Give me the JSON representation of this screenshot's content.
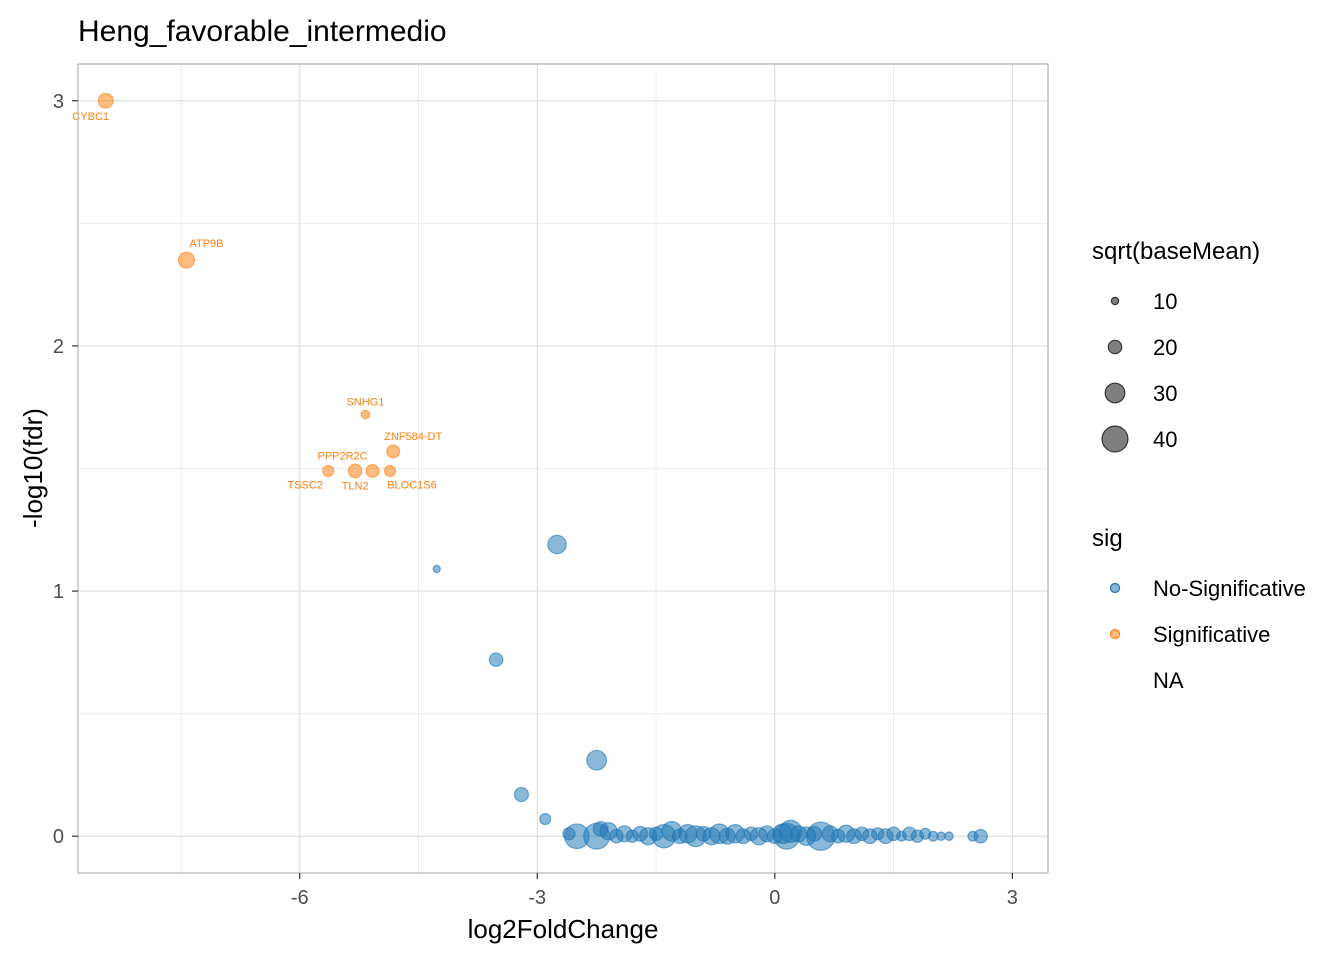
{
  "chart_data": {
    "type": "scatter",
    "title": "Heng_favorable_intermedio",
    "xlabel": "log2FoldChange",
    "ylabel": "-log10(fdr)",
    "xlim": [
      -8.8,
      3.45
    ],
    "ylim": [
      -0.15,
      3.15
    ],
    "x_ticks": [
      -6,
      -3,
      0,
      3
    ],
    "y_ticks": [
      0,
      1,
      2,
      3
    ],
    "x_tick_labels": [
      "-6",
      "-3",
      "0",
      "3"
    ],
    "y_tick_labels": [
      "0",
      "1",
      "2",
      "3"
    ],
    "grid": true,
    "colors": {
      "No-Significative": "#1f77b4",
      "Significative": "#ff7f0e"
    },
    "legend": {
      "placement": "right",
      "size_title": "sqrt(baseMean)",
      "size_entries": [
        {
          "label": "10",
          "value": 10
        },
        {
          "label": "20",
          "value": 20
        },
        {
          "label": "30",
          "value": 30
        },
        {
          "label": "40",
          "value": 40
        }
      ],
      "color_title": "sig",
      "color_entries": [
        "No-Significative",
        "Significative",
        "NA"
      ]
    },
    "series": [
      {
        "name": "Significative",
        "points": [
          {
            "x": -8.45,
            "y": 3.0,
            "size": 22,
            "label": "CYBC1",
            "label_pos": "below"
          },
          {
            "x": -7.43,
            "y": 2.35,
            "size": 24,
            "label": "ATP9B",
            "label_pos": "above"
          },
          {
            "x": -5.17,
            "y": 1.72,
            "size": 12,
            "label": "SNHG1",
            "label_pos": "above"
          },
          {
            "x": -4.82,
            "y": 1.57,
            "size": 19,
            "label": "ZNF584-DT",
            "label_pos": "above"
          },
          {
            "x": -5.64,
            "y": 1.49,
            "size": 16,
            "label": "TSSC2",
            "label_pos": "below"
          },
          {
            "x": -5.3,
            "y": 1.49,
            "size": 20,
            "label": "TLN2",
            "label_pos": "below"
          },
          {
            "x": -5.08,
            "y": 1.49,
            "size": 19,
            "label": "PPP2R2C",
            "label_pos": "above"
          },
          {
            "x": -4.86,
            "y": 1.49,
            "size": 16,
            "label": "BLOC1S6",
            "label_pos": "below"
          }
        ]
      },
      {
        "name": "No-Significative",
        "points": [
          {
            "x": -2.75,
            "y": 1.19,
            "size": 28
          },
          {
            "x": -4.27,
            "y": 1.09,
            "size": 10
          },
          {
            "x": -3.52,
            "y": 0.72,
            "size": 20
          },
          {
            "x": -2.25,
            "y": 0.31,
            "size": 30
          },
          {
            "x": -3.2,
            "y": 0.17,
            "size": 21
          },
          {
            "x": -2.9,
            "y": 0.07,
            "size": 16
          },
          {
            "x": -2.5,
            "y": 0.0,
            "size": 38
          },
          {
            "x": -2.6,
            "y": 0.01,
            "size": 18
          },
          {
            "x": -2.25,
            "y": 0.0,
            "size": 40
          },
          {
            "x": -2.2,
            "y": 0.03,
            "size": 22
          },
          {
            "x": -2.1,
            "y": 0.02,
            "size": 26
          },
          {
            "x": -2.0,
            "y": 0.0,
            "size": 20
          },
          {
            "x": -1.9,
            "y": 0.01,
            "size": 24
          },
          {
            "x": -1.8,
            "y": 0.0,
            "size": 18
          },
          {
            "x": -1.7,
            "y": 0.01,
            "size": 22
          },
          {
            "x": -1.6,
            "y": 0.0,
            "size": 26
          },
          {
            "x": -1.5,
            "y": 0.01,
            "size": 20
          },
          {
            "x": -1.4,
            "y": 0.0,
            "size": 36
          },
          {
            "x": -1.3,
            "y": 0.02,
            "size": 30
          },
          {
            "x": -1.2,
            "y": 0.0,
            "size": 22
          },
          {
            "x": -1.1,
            "y": 0.01,
            "size": 28
          },
          {
            "x": -1.0,
            "y": 0.0,
            "size": 32
          },
          {
            "x": -0.9,
            "y": 0.01,
            "size": 22
          },
          {
            "x": -0.8,
            "y": 0.0,
            "size": 26
          },
          {
            "x": -0.7,
            "y": 0.01,
            "size": 30
          },
          {
            "x": -0.6,
            "y": 0.0,
            "size": 24
          },
          {
            "x": -0.5,
            "y": 0.01,
            "size": 28
          },
          {
            "x": -0.4,
            "y": 0.0,
            "size": 22
          },
          {
            "x": -0.3,
            "y": 0.01,
            "size": 20
          },
          {
            "x": -0.2,
            "y": 0.0,
            "size": 26
          },
          {
            "x": -0.1,
            "y": 0.01,
            "size": 24
          },
          {
            "x": 0.0,
            "y": 0.0,
            "size": 22
          },
          {
            "x": 0.1,
            "y": 0.01,
            "size": 30
          },
          {
            "x": 0.15,
            "y": 0.0,
            "size": 40
          },
          {
            "x": 0.2,
            "y": 0.02,
            "size": 34
          },
          {
            "x": 0.3,
            "y": 0.01,
            "size": 24
          },
          {
            "x": 0.4,
            "y": 0.0,
            "size": 28
          },
          {
            "x": 0.5,
            "y": 0.01,
            "size": 22
          },
          {
            "x": 0.58,
            "y": 0.0,
            "size": 44
          },
          {
            "x": 0.7,
            "y": 0.01,
            "size": 24
          },
          {
            "x": 0.8,
            "y": 0.0,
            "size": 20
          },
          {
            "x": 0.9,
            "y": 0.01,
            "size": 26
          },
          {
            "x": 1.0,
            "y": 0.0,
            "size": 22
          },
          {
            "x": 1.1,
            "y": 0.01,
            "size": 20
          },
          {
            "x": 1.2,
            "y": 0.0,
            "size": 22
          },
          {
            "x": 1.3,
            "y": 0.01,
            "size": 18
          },
          {
            "x": 1.4,
            "y": 0.0,
            "size": 22
          },
          {
            "x": 1.5,
            "y": 0.01,
            "size": 20
          },
          {
            "x": 1.6,
            "y": 0.0,
            "size": 14
          },
          {
            "x": 1.7,
            "y": 0.01,
            "size": 20
          },
          {
            "x": 1.8,
            "y": 0.0,
            "size": 18
          },
          {
            "x": 1.9,
            "y": 0.01,
            "size": 16
          },
          {
            "x": 2.0,
            "y": 0.0,
            "size": 14
          },
          {
            "x": 2.1,
            "y": 0.0,
            "size": 12
          },
          {
            "x": 2.2,
            "y": 0.0,
            "size": 12
          },
          {
            "x": 2.5,
            "y": 0.0,
            "size": 14
          },
          {
            "x": 2.6,
            "y": 0.0,
            "size": 20
          }
        ]
      }
    ]
  }
}
